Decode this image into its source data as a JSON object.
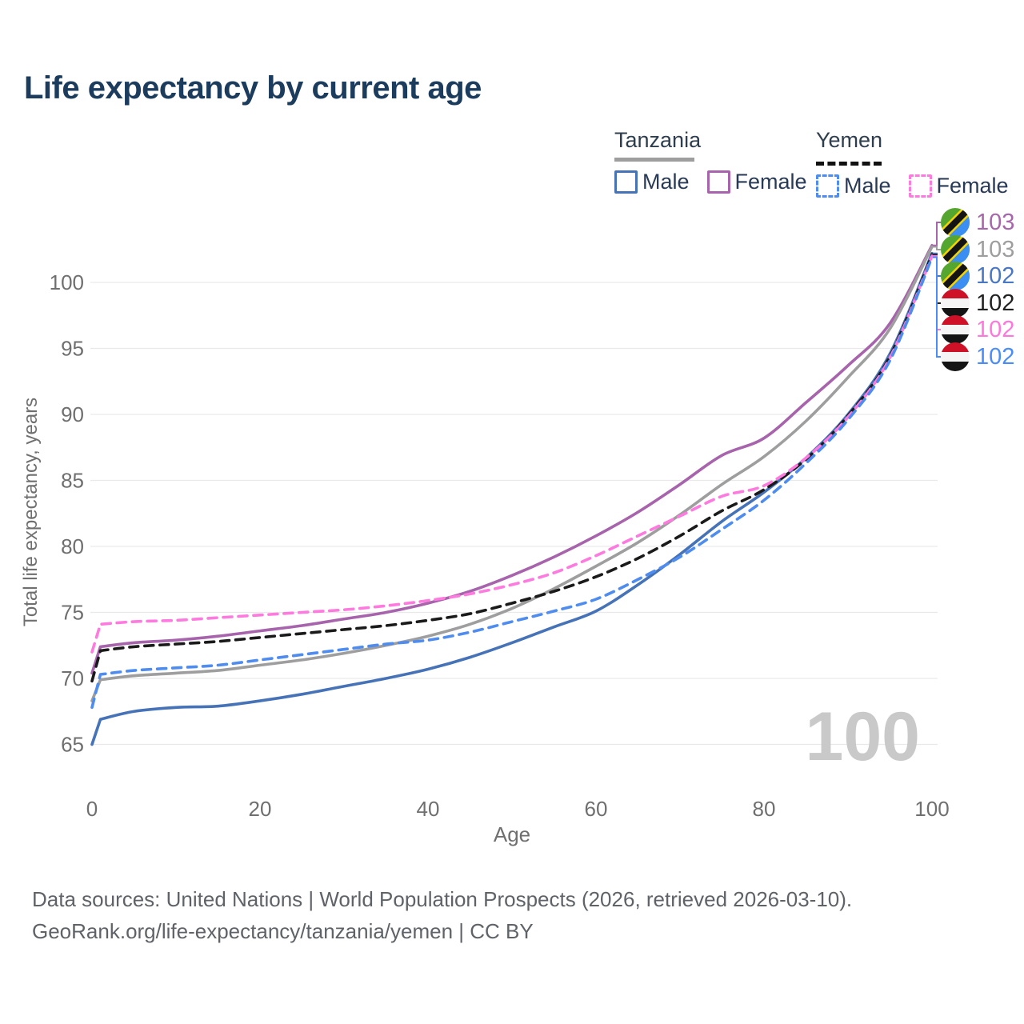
{
  "title": "Life expectancy by current age",
  "legend": {
    "groups": [
      {
        "country": "Tanzania",
        "line_style": "solid",
        "entries": [
          {
            "label": "Male",
            "color": "#4673b8"
          },
          {
            "label": "Female",
            "color": "#a763ab"
          }
        ]
      },
      {
        "country": "Yemen",
        "line_style": "dashed",
        "entries": [
          {
            "label": "Male",
            "color": "#4e8cf0"
          },
          {
            "label": "Female",
            "color": "#ff7ade"
          }
        ]
      }
    ]
  },
  "colors": {
    "title": "#1c3c5e",
    "axis_text": "#6f6f6f",
    "grid": "#e9e9e9",
    "watermark": "#c9c9c9",
    "footer": "#5f6368"
  },
  "chart_data": {
    "type": "line",
    "title": "Life expectancy by current age",
    "xlabel": "Age",
    "ylabel": "Total life expectancy, years",
    "xlim": [
      0,
      100
    ],
    "ylim": [
      63,
      104
    ],
    "xticks": [
      0,
      20,
      40,
      60,
      80,
      100
    ],
    "yticks": [
      65,
      70,
      75,
      80,
      85,
      90,
      95,
      100
    ],
    "grid": "horizontal",
    "legend_position": "top-right",
    "watermark": "100",
    "x": [
      0,
      1,
      5,
      10,
      15,
      20,
      25,
      30,
      35,
      40,
      45,
      50,
      55,
      60,
      65,
      70,
      75,
      80,
      85,
      90,
      95,
      100
    ],
    "series": [
      {
        "name": "Tanzania Female",
        "country": "Tanzania",
        "sex": "Female",
        "color": "#a763ab",
        "dash": false,
        "values": [
          70.4,
          72.4,
          72.7,
          72.9,
          73.2,
          73.6,
          74.0,
          74.5,
          75.0,
          75.7,
          76.6,
          77.8,
          79.2,
          80.8,
          82.6,
          84.7,
          86.9,
          88.2,
          90.9,
          93.7,
          96.9,
          102.8
        ]
      },
      {
        "name": "Tanzania",
        "country": "Tanzania",
        "sex": "Both",
        "color": "#9e9e9e",
        "dash": false,
        "values": [
          68.3,
          69.9,
          70.2,
          70.4,
          70.6,
          71.0,
          71.4,
          71.9,
          72.5,
          73.2,
          74.1,
          75.3,
          76.8,
          78.5,
          80.3,
          82.4,
          84.7,
          86.8,
          89.5,
          92.8,
          96.5,
          102.7
        ]
      },
      {
        "name": "Tanzania Male",
        "country": "Tanzania",
        "sex": "Male",
        "color": "#4673b8",
        "dash": false,
        "values": [
          65.0,
          66.9,
          67.5,
          67.8,
          67.9,
          68.3,
          68.8,
          69.4,
          70.0,
          70.7,
          71.6,
          72.7,
          73.9,
          75.1,
          77.1,
          79.4,
          81.9,
          84.1,
          86.7,
          90.0,
          94.6,
          102.2
        ]
      },
      {
        "name": "Yemen",
        "country": "Yemen",
        "sex": "Both",
        "color": "#1a1a1a",
        "dash": true,
        "values": [
          69.8,
          72.1,
          72.4,
          72.6,
          72.8,
          73.1,
          73.4,
          73.7,
          74.0,
          74.4,
          74.9,
          75.7,
          76.6,
          77.7,
          79.1,
          80.8,
          82.7,
          84.3,
          86.6,
          89.9,
          94.4,
          102.1
        ]
      },
      {
        "name": "Yemen Female",
        "country": "Yemen",
        "sex": "Female",
        "color": "#ff7ade",
        "dash": true,
        "values": [
          72.0,
          74.1,
          74.3,
          74.4,
          74.6,
          74.8,
          75.0,
          75.2,
          75.5,
          75.9,
          76.4,
          77.1,
          78.0,
          79.3,
          80.8,
          82.3,
          83.8,
          84.6,
          86.7,
          89.8,
          94.3,
          102.0
        ]
      },
      {
        "name": "Yemen Male",
        "country": "Yemen",
        "sex": "Male",
        "color": "#4e8cf0",
        "dash": true,
        "values": [
          67.8,
          70.3,
          70.6,
          70.8,
          71.0,
          71.4,
          71.8,
          72.2,
          72.6,
          72.9,
          73.5,
          74.3,
          75.1,
          76.0,
          77.5,
          79.2,
          81.3,
          83.5,
          86.3,
          89.6,
          94.1,
          101.9
        ]
      }
    ],
    "end_labels": [
      {
        "value": "103",
        "color": "#a766ab",
        "flag": "tanzania-flag",
        "series": "Tanzania Female"
      },
      {
        "value": "103",
        "color": "#9e9e9e",
        "flag": "tanzania-flag",
        "series": "Tanzania"
      },
      {
        "value": "102",
        "color": "#4a77c4",
        "flag": "tanzania-flag",
        "series": "Tanzania Male"
      },
      {
        "value": "102",
        "color": "#212121",
        "flag": "yemen-flag",
        "series": "Yemen"
      },
      {
        "value": "102",
        "color": "#ff77dd",
        "flag": "yemen-flag",
        "series": "Yemen Female"
      },
      {
        "value": "102",
        "color": "#4b8df8",
        "flag": "yemen-flag",
        "series": "Yemen Male"
      }
    ]
  },
  "footer": {
    "line1": "Data sources: United Nations | World Population Prospects (2026, retrieved 2026-03-10).",
    "line2": "GeoRank.org/life-expectancy/tanzania/yemen | CC BY"
  }
}
